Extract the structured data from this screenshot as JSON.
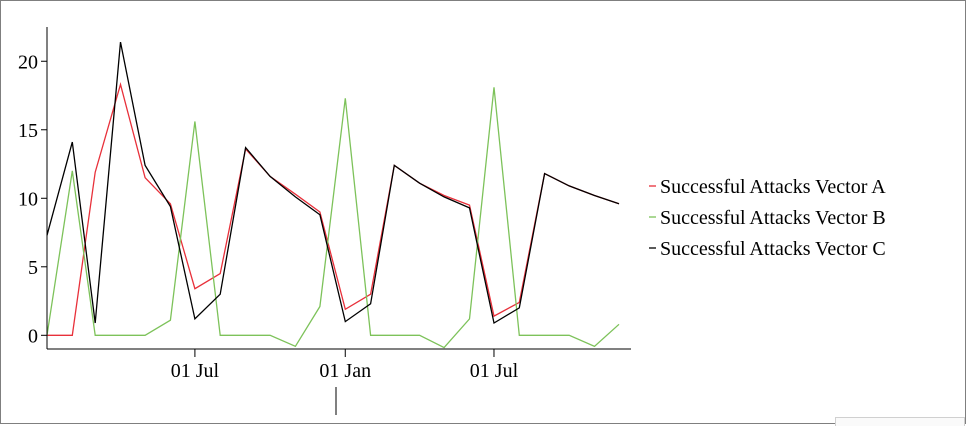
{
  "chart_data": {
    "type": "line",
    "title": "",
    "xlabel": "",
    "ylabel": "",
    "ylim": [
      -1,
      22.5
    ],
    "yticks": [
      0,
      5,
      10,
      15,
      20
    ],
    "xtick_labels": [
      "01 Jul",
      "01 Jan",
      "01 Jul"
    ],
    "x": [
      "2019-01-01",
      "2019-02-01",
      "2019-03-01",
      "2019-04-01",
      "2019-05-01",
      "2019-06-01",
      "2019-07-01",
      "2019-08-01",
      "2019-09-01",
      "2019-10-01",
      "2019-11-01",
      "2019-12-01",
      "2020-01-01",
      "2020-02-01",
      "2020-03-01",
      "2020-04-01",
      "2020-05-01",
      "2020-06-01",
      "2020-07-01",
      "2020-08-01",
      "2020-09-01",
      "2020-10-01",
      "2020-11-01",
      "2020-12-01"
    ],
    "series": [
      {
        "name": "Successful Attacks Vector A",
        "color": "#e8303a",
        "values": [
          0,
          0,
          11.9,
          18.3,
          11.5,
          9.6,
          3.4,
          4.5,
          13.6,
          11.6,
          10.3,
          9.0,
          1.9,
          3.0,
          12.4,
          11.1,
          10.2,
          9.5,
          1.4,
          2.4,
          11.8,
          10.9,
          10.2,
          9.6
        ]
      },
      {
        "name": "Successful Attacks Vector B",
        "color": "#7dc25a",
        "values": [
          0,
          12.0,
          0,
          0,
          0,
          1.1,
          15.6,
          0,
          0,
          0,
          -0.8,
          2.1,
          17.3,
          0,
          0,
          0,
          -0.9,
          1.2,
          18.1,
          0,
          0,
          0,
          -0.8,
          0.8
        ]
      },
      {
        "name": "Successful Attacks Vector C",
        "color": "#000000",
        "values": [
          7.3,
          14.1,
          0.9,
          21.4,
          12.4,
          9.4,
          1.2,
          3.0,
          13.7,
          11.6,
          10.1,
          8.8,
          1.0,
          2.3,
          12.4,
          11.1,
          10.1,
          9.3,
          0.9,
          2.0,
          11.8,
          10.9,
          10.2,
          9.6
        ]
      }
    ],
    "grid": false,
    "legend": "right"
  }
}
